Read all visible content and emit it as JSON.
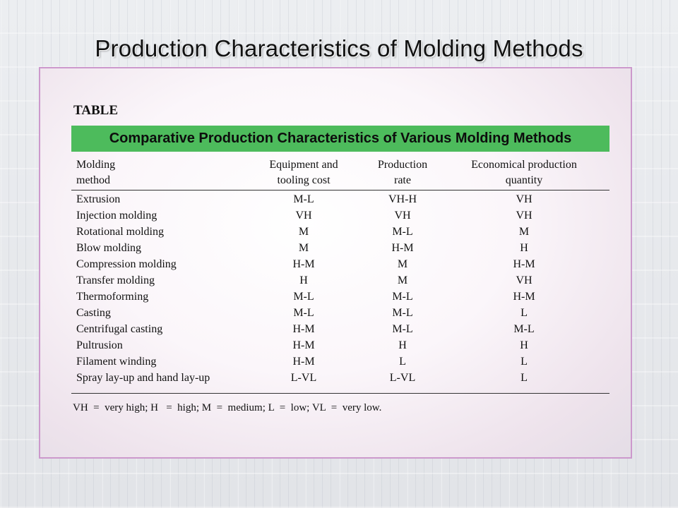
{
  "slide": {
    "title": "Production Characteristics of Molding Methods"
  },
  "table": {
    "label": "TABLE",
    "caption": "Comparative Production Characteristics of Various Molding Methods",
    "headers": [
      [
        "Molding",
        "method"
      ],
      [
        "Equipment and",
        "tooling cost"
      ],
      [
        "Production",
        "rate"
      ],
      [
        "Economical production",
        "quantity"
      ]
    ],
    "rows": [
      [
        "Extrusion",
        "M-L",
        "VH-H",
        "VH"
      ],
      [
        "Injection molding",
        "VH",
        "VH",
        "VH"
      ],
      [
        "Rotational molding",
        "M",
        "M-L",
        "M"
      ],
      [
        "Blow molding",
        "M",
        "H-M",
        "H"
      ],
      [
        "Compression molding",
        "H-M",
        "M",
        "H-M"
      ],
      [
        "Transfer molding",
        "H",
        "M",
        "VH"
      ],
      [
        "Thermoforming",
        "M-L",
        "M-L",
        "H-M"
      ],
      [
        "Casting",
        "M-L",
        "M-L",
        "L"
      ],
      [
        "Centrifugal casting",
        "H-M",
        "M-L",
        "M-L"
      ],
      [
        "Pultrusion",
        "H-M",
        "H",
        "H"
      ],
      [
        "Filament winding",
        "H-M",
        "L",
        "L"
      ],
      [
        "Spray lay-up and hand lay-up",
        "L-VL",
        "L-VL",
        "L"
      ]
    ],
    "footnote": "VH  =  very high; H   =  high; M  =  medium; L  =  low; VL  =  very low."
  },
  "colors": {
    "caption_bar": "#4dbb5c",
    "frame_border": "#cc99cc"
  }
}
